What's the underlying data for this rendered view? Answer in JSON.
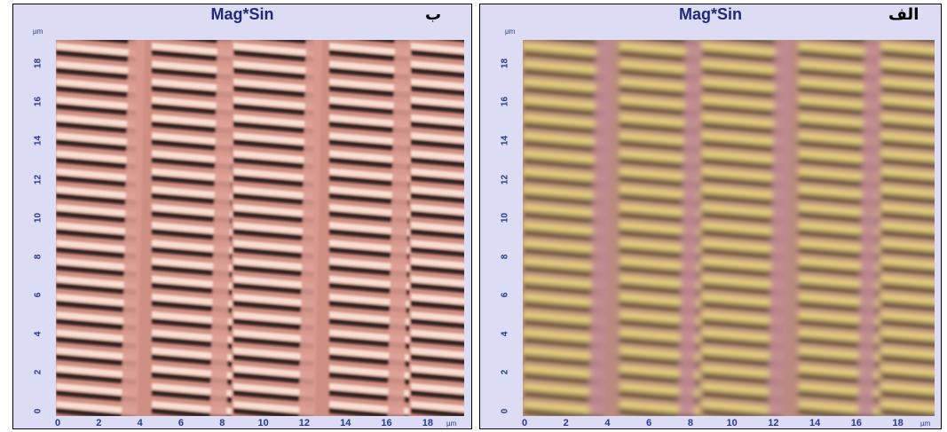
{
  "panels": [
    {
      "id": "right",
      "title": "Mag*Sin",
      "tag": "الف",
      "y_unit": "µm",
      "x_unit": "µm",
      "y_ticks": [
        "0",
        "2",
        "4",
        "6",
        "8",
        "10",
        "12",
        "14",
        "16",
        "18"
      ],
      "x_ticks": [
        "0",
        "2",
        "4",
        "6",
        "8",
        "10",
        "12",
        "14",
        "16",
        "18"
      ],
      "colors": {
        "base": "#b98a7e",
        "stripe_light": "#f0e080",
        "stripe_dark": "#2a2010",
        "vertical_band": "#c08a92"
      }
    },
    {
      "id": "left",
      "title": "Mag*Sin",
      "tag": "ب",
      "y_unit": "µm",
      "x_unit": "µm",
      "y_ticks": [
        "0",
        "2",
        "4",
        "6",
        "8",
        "10",
        "12",
        "14",
        "16",
        "18"
      ],
      "x_ticks": [
        "0",
        "2",
        "4",
        "6",
        "8",
        "10",
        "12",
        "14",
        "16",
        "18"
      ],
      "colors": {
        "base": "#cf8e82",
        "stripe_light": "#fbe3d6",
        "stripe_dark": "#140a08",
        "vertical_band": "#d99a90"
      }
    }
  ]
}
